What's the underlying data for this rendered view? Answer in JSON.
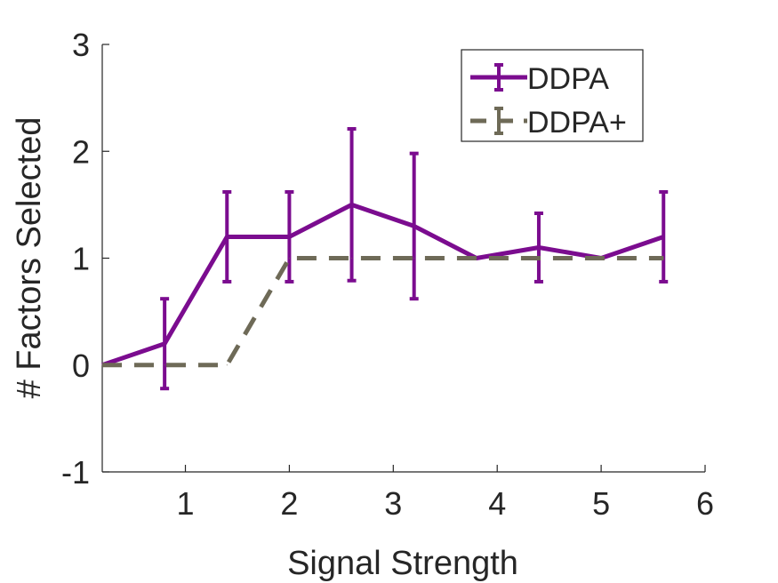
{
  "chart_data": {
    "type": "line",
    "xlabel": "Signal Strength",
    "ylabel": "# Factors Selected",
    "xlim": [
      0.2,
      6
    ],
    "ylim": [
      -1,
      3
    ],
    "xticks": [
      1,
      2,
      3,
      4,
      5,
      6
    ],
    "yticks": [
      -1,
      0,
      1,
      2,
      3
    ],
    "grid": false,
    "legend_position": "top-right",
    "x": [
      0.2,
      0.8,
      1.4,
      2.0,
      2.6,
      3.2,
      3.8,
      4.4,
      5.0,
      5.6
    ],
    "series": [
      {
        "name": "DDPA",
        "color": "#7b0c8f",
        "line_style": "solid",
        "values": [
          0,
          0.2,
          1.2,
          1.2,
          1.5,
          1.3,
          1.0,
          1.1,
          1.0,
          1.2
        ],
        "error": [
          0,
          0.42,
          0.42,
          0.42,
          0.71,
          0.68,
          0,
          0.32,
          0,
          0.42
        ]
      },
      {
        "name": "DDPA+",
        "color": "#6e6a57",
        "line_style": "dashed",
        "values": [
          0,
          0,
          0,
          1.0,
          1.0,
          1.0,
          1.0,
          1.0,
          1.0,
          1.0
        ],
        "error": [
          0,
          0,
          0,
          0,
          0,
          0,
          0,
          0,
          0,
          0
        ]
      }
    ]
  }
}
